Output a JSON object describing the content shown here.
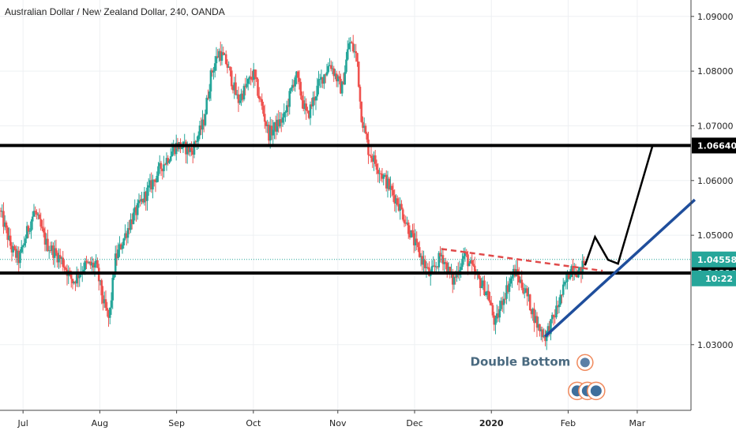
{
  "chart_data": {
    "type": "candlestick",
    "title": "Australian Dollar / New Zealand Dollar, 240, OANDA",
    "ylim": [
      1.018,
      1.093
    ],
    "y_ticks": [
      "1.09000",
      "1.08000",
      "1.07000",
      "1.06000",
      "1.05000",
      "1.03000"
    ],
    "x_ticks": [
      {
        "label": "Jul",
        "x": 0.3,
        "bold": false
      },
      {
        "label": "Aug",
        "x": 1.3,
        "bold": false
      },
      {
        "label": "Sep",
        "x": 2.3,
        "bold": false
      },
      {
        "label": "Oct",
        "x": 3.3,
        "bold": false
      },
      {
        "label": "Nov",
        "x": 4.4,
        "bold": false
      },
      {
        "label": "Dec",
        "x": 5.4,
        "bold": false
      },
      {
        "label": "2020",
        "x": 6.4,
        "bold": true
      },
      {
        "label": "Feb",
        "x": 7.4,
        "bold": false
      },
      {
        "label": "Mar",
        "x": 8.3,
        "bold": false
      }
    ],
    "xlim": [
      0.0,
      9.0
    ],
    "price_series": [
      [
        0.0,
        1.0545
      ],
      [
        0.15,
        1.0475
      ],
      [
        0.25,
        1.0455
      ],
      [
        0.35,
        1.0505
      ],
      [
        0.45,
        1.0545
      ],
      [
        0.6,
        1.0485
      ],
      [
        0.8,
        1.0455
      ],
      [
        0.95,
        1.0415
      ],
      [
        1.1,
        1.0445
      ],
      [
        1.25,
        1.0445
      ],
      [
        1.35,
        1.0375
      ],
      [
        1.42,
        1.0345
      ],
      [
        1.5,
        1.0455
      ],
      [
        1.7,
        1.0525
      ],
      [
        1.9,
        1.0575
      ],
      [
        2.1,
        1.0625
      ],
      [
        2.3,
        1.0665
      ],
      [
        2.5,
        1.0655
      ],
      [
        2.65,
        1.0705
      ],
      [
        2.75,
        1.0795
      ],
      [
        2.85,
        1.0835
      ],
      [
        2.95,
        1.0815
      ],
      [
        3.1,
        1.0745
      ],
      [
        3.3,
        1.0795
      ],
      [
        3.5,
        1.0685
      ],
      [
        3.7,
        1.0715
      ],
      [
        3.85,
        1.0795
      ],
      [
        4.0,
        1.0715
      ],
      [
        4.15,
        1.0775
      ],
      [
        4.3,
        1.0815
      ],
      [
        4.45,
        1.0765
      ],
      [
        4.55,
        1.0855
      ],
      [
        4.65,
        1.0825
      ],
      [
        4.7,
        1.0725
      ],
      [
        4.8,
        1.0655
      ],
      [
        5.0,
        1.0605
      ],
      [
        5.2,
        1.0555
      ],
      [
        5.4,
        1.0485
      ],
      [
        5.6,
        1.0425
      ],
      [
        5.75,
        1.0465
      ],
      [
        5.9,
        1.0415
      ],
      [
        6.05,
        1.0465
      ],
      [
        6.2,
        1.0425
      ],
      [
        6.35,
        1.0395
      ],
      [
        6.45,
        1.0335
      ],
      [
        6.55,
        1.0385
      ],
      [
        6.7,
        1.0435
      ],
      [
        6.85,
        1.0395
      ],
      [
        7.0,
        1.0335
      ],
      [
        7.1,
        1.0315
      ],
      [
        7.2,
        1.0345
      ],
      [
        7.3,
        1.0385
      ],
      [
        7.45,
        1.0445
      ],
      [
        7.55,
        1.043
      ],
      [
        7.62,
        1.0456
      ]
    ],
    "levels": [
      {
        "value": 1.0664,
        "label": "1.06640"
      },
      {
        "value": 1.0431,
        "label": "1.04310"
      }
    ],
    "current_price": {
      "value": 1.04558,
      "label": "1.04558",
      "countdown": "10:22"
    },
    "resistance_trendline": [
      [
        5.75,
        1.0475
      ],
      [
        7.85,
        1.0435
      ]
    ],
    "support_trendline": [
      [
        7.1,
        1.0315
      ],
      [
        9.05,
        1.0565
      ]
    ],
    "projection_path": [
      [
        7.62,
        1.0445
      ],
      [
        7.75,
        1.0497
      ],
      [
        7.92,
        1.0455
      ],
      [
        8.05,
        1.0448
      ],
      [
        8.5,
        1.0664
      ]
    ],
    "annotation": "Double Bottom",
    "colors": {
      "up": "#26a69a",
      "down": "#ef5350",
      "level": "#000000",
      "support": "#1f4e9c",
      "resistance": "#e04a4a",
      "current": "#26a69a",
      "annotation": "#4a6a80"
    }
  }
}
